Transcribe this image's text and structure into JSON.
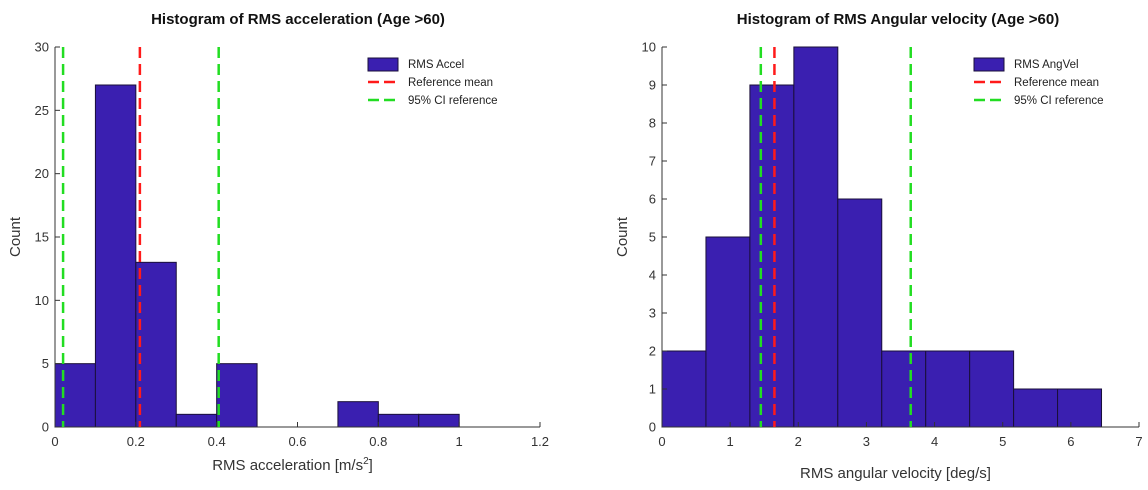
{
  "colors": {
    "bar_fill": "#3a1fb0",
    "bar_edge": "#1a0f3a",
    "reference_mean": "#ff1a1a",
    "ci_reference": "#22dd22",
    "axis": "#333333",
    "background": "#ffffff"
  },
  "chart_data": [
    {
      "type": "histogram",
      "title": "Histogram of RMS acceleration (Age >60)",
      "xlabel": "RMS acceleration [m/s",
      "xlabel_sup": "2",
      "xlabel_tail": "]",
      "ylabel": "Count",
      "xlim": [
        0,
        1.2
      ],
      "ylim": [
        0,
        30
      ],
      "xticks": [
        0,
        0.2,
        0.4,
        0.6,
        0.8,
        1,
        1.2
      ],
      "xtick_labels": [
        "0",
        "0.2",
        "0.4",
        "0.6",
        "0.8",
        "1",
        "1.2"
      ],
      "yticks": [
        0,
        5,
        10,
        15,
        20,
        25,
        30
      ],
      "ytick_labels": [
        "0",
        "5",
        "10",
        "15",
        "20",
        "25",
        "30"
      ],
      "bins": [
        {
          "x0": 0.0,
          "x1": 0.1,
          "count": 5
        },
        {
          "x0": 0.1,
          "x1": 0.2,
          "count": 27
        },
        {
          "x0": 0.2,
          "x1": 0.3,
          "count": 13
        },
        {
          "x0": 0.3,
          "x1": 0.4,
          "count": 1
        },
        {
          "x0": 0.4,
          "x1": 0.5,
          "count": 5
        },
        {
          "x0": 0.5,
          "x1": 0.6,
          "count": 0
        },
        {
          "x0": 0.6,
          "x1": 0.7,
          "count": 0
        },
        {
          "x0": 0.7,
          "x1": 0.8,
          "count": 2
        },
        {
          "x0": 0.8,
          "x1": 0.9,
          "count": 1
        },
        {
          "x0": 0.9,
          "x1": 1.0,
          "count": 1
        }
      ],
      "reference_mean": 0.21,
      "ci_reference": [
        0.02,
        0.405
      ],
      "legend": [
        {
          "label": "RMS Accel",
          "kind": "patch"
        },
        {
          "label": "Reference mean",
          "kind": "dash-red"
        },
        {
          "label": "95% CI reference",
          "kind": "dash-green"
        }
      ],
      "legend_position": "top-right",
      "grid": false
    },
    {
      "type": "histogram",
      "title": "Histogram of RMS Angular velocity (Age >60)",
      "xlabel": "RMS angular velocity [deg/s]",
      "xlabel_sup": "",
      "xlabel_tail": "",
      "ylabel": "Count",
      "xlim": [
        0,
        7
      ],
      "ylim": [
        0,
        10
      ],
      "xticks": [
        0,
        1,
        2,
        3,
        4,
        5,
        6,
        7
      ],
      "xtick_labels": [
        "0",
        "1",
        "2",
        "3",
        "4",
        "5",
        "6",
        "7"
      ],
      "yticks": [
        0,
        1,
        2,
        3,
        4,
        5,
        6,
        7,
        8,
        9,
        10
      ],
      "ytick_labels": [
        "0",
        "1",
        "2",
        "3",
        "4",
        "5",
        "6",
        "7",
        "8",
        "9",
        "10"
      ],
      "bins": [
        {
          "x0": 0.0,
          "x1": 0.645,
          "count": 2
        },
        {
          "x0": 0.645,
          "x1": 1.29,
          "count": 5
        },
        {
          "x0": 1.29,
          "x1": 1.935,
          "count": 9
        },
        {
          "x0": 1.935,
          "x1": 2.58,
          "count": 10
        },
        {
          "x0": 2.58,
          "x1": 3.225,
          "count": 6
        },
        {
          "x0": 3.225,
          "x1": 3.87,
          "count": 2
        },
        {
          "x0": 3.87,
          "x1": 4.515,
          "count": 2
        },
        {
          "x0": 4.515,
          "x1": 5.16,
          "count": 2
        },
        {
          "x0": 5.16,
          "x1": 5.805,
          "count": 1
        },
        {
          "x0": 5.805,
          "x1": 6.45,
          "count": 1
        }
      ],
      "reference_mean": 1.65,
      "ci_reference": [
        1.45,
        3.65
      ],
      "legend": [
        {
          "label": "RMS AngVel",
          "kind": "patch"
        },
        {
          "label": "Reference mean",
          "kind": "dash-red"
        },
        {
          "label": "95% CI reference",
          "kind": "dash-green"
        }
      ],
      "legend_position": "top-right",
      "grid": false
    }
  ]
}
